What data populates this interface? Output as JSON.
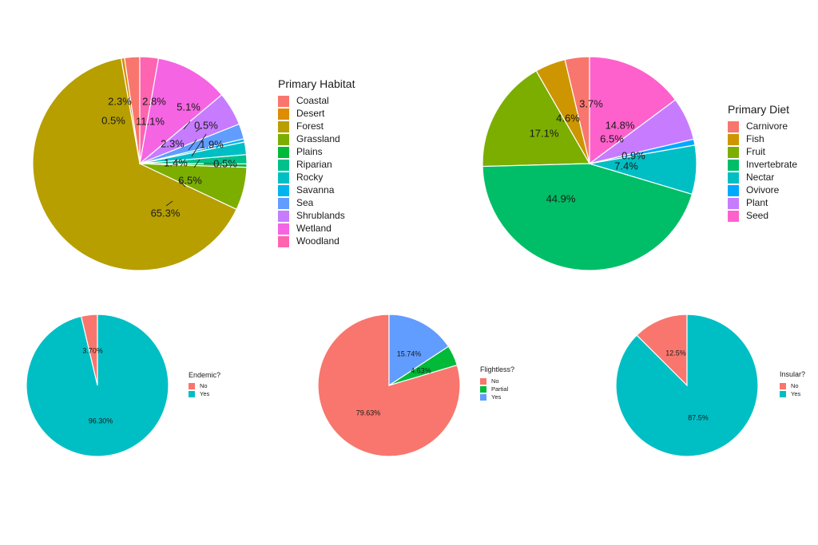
{
  "chart_data": [
    {
      "type": "pie",
      "legend_title": "Primary Habitat",
      "legend_position": "right",
      "categories": [
        "Coastal",
        "Desert",
        "Forest",
        "Grassland",
        "Plains",
        "Riparian",
        "Rocky",
        "Savanna",
        "Sea",
        "Shrublands",
        "Wetland",
        "Woodland"
      ],
      "values": [
        2.3,
        0.5,
        65.3,
        6.5,
        0.5,
        1.4,
        1.9,
        0.5,
        2.3,
        5.1,
        11.1,
        2.8
      ],
      "labels": [
        "2.3%",
        "0.5%",
        "65.3%",
        "6.5%",
        "0.5%",
        "1.4%",
        "1.9%",
        "0.5%",
        "2.3%",
        "5.1%",
        "11.1%",
        "2.8%"
      ],
      "colors": [
        "#F8766D",
        "#DE8C00",
        "#B79F00",
        "#7CAE00",
        "#00BA38",
        "#00C08B",
        "#00BFC4",
        "#00B4F0",
        "#619CFF",
        "#C77CFF",
        "#F564E3",
        "#FF64B0"
      ]
    },
    {
      "type": "pie",
      "legend_title": "Primary Diet",
      "legend_position": "right",
      "categories": [
        "Carnivore",
        "Fish",
        "Fruit",
        "Invertebrate",
        "Nectar",
        "Ovivore",
        "Plant",
        "Seed"
      ],
      "values": [
        3.7,
        4.6,
        17.1,
        44.9,
        7.4,
        0.9,
        6.5,
        14.8
      ],
      "labels": [
        "3.7%",
        "4.6%",
        "17.1%",
        "44.9%",
        "7.4%",
        "0.9%",
        "6.5%",
        "14.8%"
      ],
      "colors": [
        "#F8766D",
        "#CD9600",
        "#7CAE00",
        "#00BE67",
        "#00BFC4",
        "#00A9FF",
        "#C77CFF",
        "#FF61CC"
      ]
    },
    {
      "type": "pie",
      "legend_title": "Endemic?",
      "legend_position": "right",
      "categories": [
        "No",
        "Yes"
      ],
      "values": [
        3.7,
        96.3
      ],
      "labels": [
        "3.70%",
        "96.30%"
      ],
      "colors": [
        "#F8766D",
        "#00BFC4"
      ]
    },
    {
      "type": "pie",
      "legend_title": "Flightless?",
      "legend_position": "right",
      "categories": [
        "No",
        "Partial",
        "Yes"
      ],
      "values": [
        79.63,
        4.63,
        15.74
      ],
      "labels": [
        "79.63%",
        "4.63%",
        "15.74%"
      ],
      "colors": [
        "#F8766D",
        "#00BA38",
        "#619CFF"
      ]
    },
    {
      "type": "pie",
      "legend_title": "Insular?",
      "legend_position": "right",
      "categories": [
        "No",
        "Yes"
      ],
      "values": [
        12.5,
        87.5
      ],
      "labels": [
        "12.5%",
        "87.5%"
      ],
      "colors": [
        "#F8766D",
        "#00BFC4"
      ]
    }
  ]
}
